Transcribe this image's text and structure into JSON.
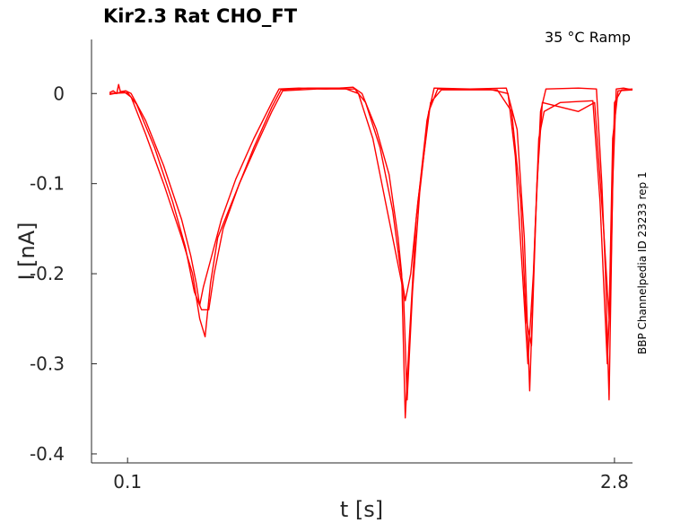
{
  "chart_data": {
    "type": "line",
    "title": "Kir2.3  Rat  CHO_FT",
    "annotation": "35 °C  Ramp",
    "side_label": "BBP Channelpedia ID 23233 rep 1",
    "xlabel": "t [s]",
    "ylabel": "I [nA]",
    "xlim": [
      -0.1,
      2.9
    ],
    "ylim": [
      -0.41,
      0.06
    ],
    "xticks": [
      {
        "value": 0.1,
        "label": "0.1"
      },
      {
        "value": 2.8,
        "label": "2.8"
      }
    ],
    "yticks": [
      {
        "value": 0,
        "label": "0"
      },
      {
        "value": -0.1,
        "label": "-0.1"
      },
      {
        "value": -0.2,
        "label": "-0.2"
      },
      {
        "value": -0.3,
        "label": "-0.3"
      },
      {
        "value": -0.4,
        "label": "-0.4"
      }
    ],
    "grid": false,
    "color": "#ff0000",
    "series": [
      {
        "points": [
          [
            0.0,
            0.001
          ],
          [
            0.02,
            0.003
          ],
          [
            0.04,
            0.0
          ],
          [
            0.05,
            0.01
          ],
          [
            0.06,
            0.002
          ],
          [
            0.09,
            0.003
          ],
          [
            0.12,
            0.0
          ],
          [
            0.2,
            -0.03
          ],
          [
            0.3,
            -0.08
          ],
          [
            0.4,
            -0.14
          ],
          [
            0.45,
            -0.18
          ],
          [
            0.48,
            -0.21
          ],
          [
            0.5,
            -0.235
          ],
          [
            0.52,
            -0.215
          ],
          [
            0.56,
            -0.185
          ],
          [
            0.62,
            -0.14
          ],
          [
            0.7,
            -0.095
          ],
          [
            0.8,
            -0.05
          ],
          [
            0.9,
            -0.01
          ],
          [
            0.94,
            0.005
          ],
          [
            1.05,
            0.006
          ],
          [
            1.2,
            0.005
          ],
          [
            1.35,
            0.007
          ],
          [
            1.4,
            0.0
          ],
          [
            1.48,
            -0.04
          ],
          [
            1.55,
            -0.09
          ],
          [
            1.6,
            -0.16
          ],
          [
            1.62,
            -0.2
          ],
          [
            1.64,
            -0.36
          ],
          [
            1.66,
            -0.28
          ],
          [
            1.7,
            -0.14
          ],
          [
            1.76,
            -0.03
          ],
          [
            1.8,
            0.006
          ],
          [
            2.0,
            0.005
          ],
          [
            2.2,
            0.006
          ],
          [
            2.26,
            -0.04
          ],
          [
            2.3,
            -0.16
          ],
          [
            2.33,
            -0.33
          ],
          [
            2.36,
            -0.15
          ],
          [
            2.39,
            -0.02
          ],
          [
            2.42,
            0.005
          ],
          [
            2.6,
            0.006
          ],
          [
            2.7,
            0.005
          ],
          [
            2.73,
            -0.1
          ],
          [
            2.75,
            -0.2
          ],
          [
            2.77,
            -0.34
          ],
          [
            2.79,
            -0.1
          ],
          [
            2.81,
            0.005
          ],
          [
            2.85,
            0.006
          ],
          [
            2.9,
            0.004
          ]
        ]
      },
      {
        "points": [
          [
            0.0,
            -0.001
          ],
          [
            0.08,
            0.002
          ],
          [
            0.12,
            -0.004
          ],
          [
            0.2,
            -0.045
          ],
          [
            0.3,
            -0.1
          ],
          [
            0.4,
            -0.16
          ],
          [
            0.46,
            -0.2
          ],
          [
            0.5,
            -0.25
          ],
          [
            0.53,
            -0.27
          ],
          [
            0.56,
            -0.21
          ],
          [
            0.6,
            -0.16
          ],
          [
            0.7,
            -0.11
          ],
          [
            0.8,
            -0.06
          ],
          [
            0.9,
            -0.015
          ],
          [
            0.95,
            0.004
          ],
          [
            1.1,
            0.006
          ],
          [
            1.3,
            0.006
          ],
          [
            1.38,
            0.0
          ],
          [
            1.46,
            -0.05
          ],
          [
            1.53,
            -0.12
          ],
          [
            1.58,
            -0.17
          ],
          [
            1.63,
            -0.22
          ],
          [
            1.65,
            -0.34
          ],
          [
            1.68,
            -0.22
          ],
          [
            1.72,
            -0.11
          ],
          [
            1.77,
            -0.02
          ],
          [
            1.82,
            0.005
          ],
          [
            2.1,
            0.005
          ],
          [
            2.21,
            0.0
          ],
          [
            2.25,
            -0.07
          ],
          [
            2.29,
            -0.2
          ],
          [
            2.32,
            -0.3
          ],
          [
            2.35,
            -0.2
          ],
          [
            2.38,
            -0.05
          ],
          [
            2.41,
            -0.02
          ],
          [
            2.5,
            -0.01
          ],
          [
            2.68,
            -0.008
          ],
          [
            2.72,
            -0.12
          ],
          [
            2.76,
            -0.3
          ],
          [
            2.78,
            -0.2
          ],
          [
            2.8,
            -0.01
          ],
          [
            2.84,
            0.004
          ],
          [
            2.9,
            0.005
          ]
        ]
      },
      {
        "points": [
          [
            0.0,
            0.0
          ],
          [
            0.1,
            0.001
          ],
          [
            0.15,
            -0.012
          ],
          [
            0.25,
            -0.06
          ],
          [
            0.35,
            -0.12
          ],
          [
            0.42,
            -0.17
          ],
          [
            0.47,
            -0.22
          ],
          [
            0.51,
            -0.24
          ],
          [
            0.55,
            -0.24
          ],
          [
            0.58,
            -0.2
          ],
          [
            0.63,
            -0.15
          ],
          [
            0.72,
            -0.1
          ],
          [
            0.82,
            -0.055
          ],
          [
            0.9,
            -0.02
          ],
          [
            0.96,
            0.003
          ],
          [
            1.15,
            0.005
          ],
          [
            1.36,
            0.005
          ],
          [
            1.42,
            -0.01
          ],
          [
            1.5,
            -0.06
          ],
          [
            1.57,
            -0.13
          ],
          [
            1.61,
            -0.19
          ],
          [
            1.64,
            -0.23
          ],
          [
            1.67,
            -0.2
          ],
          [
            1.71,
            -0.12
          ],
          [
            1.78,
            -0.01
          ],
          [
            1.84,
            0.004
          ],
          [
            2.15,
            0.004
          ],
          [
            2.23,
            -0.02
          ],
          [
            2.28,
            -0.12
          ],
          [
            2.31,
            -0.25
          ],
          [
            2.34,
            -0.28
          ],
          [
            2.37,
            -0.1
          ],
          [
            2.4,
            -0.01
          ],
          [
            2.6,
            -0.02
          ],
          [
            2.69,
            -0.01
          ],
          [
            2.74,
            -0.15
          ],
          [
            2.77,
            -0.25
          ],
          [
            2.79,
            -0.05
          ],
          [
            2.82,
            0.003
          ],
          [
            2.9,
            0.004
          ]
        ]
      }
    ]
  }
}
